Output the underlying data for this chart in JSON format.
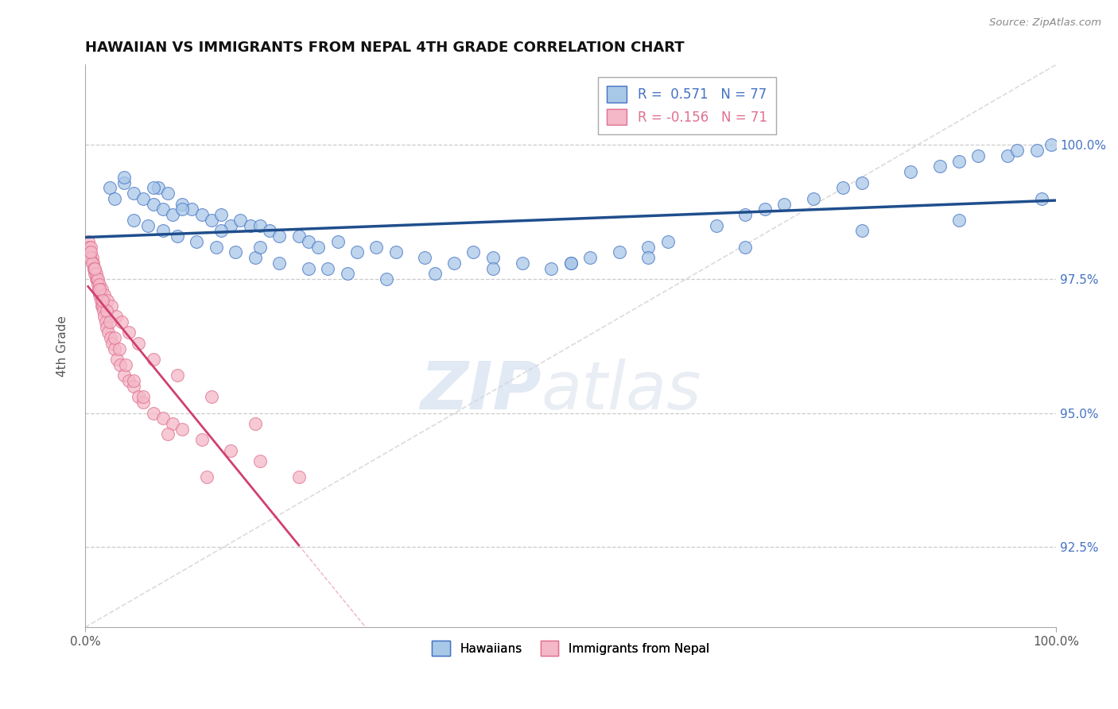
{
  "title": "HAWAIIAN VS IMMIGRANTS FROM NEPAL 4TH GRADE CORRELATION CHART",
  "source_text": "Source: ZipAtlas.com",
  "ylabel": "4th Grade",
  "xlim": [
    0.0,
    100.0
  ],
  "ylim": [
    91.0,
    101.5
  ],
  "yticks": [
    92.5,
    95.0,
    97.5,
    100.0
  ],
  "ytick_labels": [
    "92.5%",
    "95.0%",
    "97.5%",
    "100.0%"
  ],
  "legend_label1": "Hawaiians",
  "legend_label2": "Immigrants from Nepal",
  "blue_scatter_color": "#A8C8E8",
  "blue_scatter_edge": "#4472C4",
  "pink_scatter_color": "#F4B8C8",
  "pink_scatter_edge": "#E07090",
  "blue_line_color": "#1F4E8C",
  "pink_line_color": "#D04070",
  "watermark_zip": "ZIP",
  "watermark_atlas": "atlas",
  "legend_r1_color": "#4472C4",
  "legend_r2_color": "#E07090",
  "hawaiians_x": [
    2.5,
    3.0,
    4.0,
    5.0,
    6.0,
    7.0,
    7.5,
    8.0,
    8.5,
    9.0,
    10.0,
    11.0,
    12.0,
    13.0,
    14.0,
    15.0,
    16.0,
    17.0,
    18.0,
    19.0,
    20.0,
    22.0,
    23.0,
    24.0,
    26.0,
    28.0,
    30.0,
    32.0,
    35.0,
    38.0,
    40.0,
    42.0,
    45.0,
    48.0,
    50.0,
    52.0,
    55.0,
    58.0,
    60.0,
    65.0,
    68.0,
    70.0,
    72.0,
    75.0,
    78.0,
    80.0,
    85.0,
    88.0,
    90.0,
    92.0,
    95.0,
    96.0,
    98.0,
    99.5,
    5.0,
    6.5,
    8.0,
    9.5,
    11.5,
    13.5,
    15.5,
    17.5,
    20.0,
    23.0,
    27.0,
    31.0,
    36.0,
    42.0,
    50.0,
    58.0,
    68.0,
    80.0,
    90.0,
    98.5,
    4.0,
    7.0,
    10.0,
    14.0,
    18.0,
    25.0
  ],
  "hawaiians_y": [
    99.2,
    99.0,
    99.3,
    99.1,
    99.0,
    98.9,
    99.2,
    98.8,
    99.1,
    98.7,
    98.9,
    98.8,
    98.7,
    98.6,
    98.7,
    98.5,
    98.6,
    98.5,
    98.5,
    98.4,
    98.3,
    98.3,
    98.2,
    98.1,
    98.2,
    98.0,
    98.1,
    98.0,
    97.9,
    97.8,
    98.0,
    97.9,
    97.8,
    97.7,
    97.8,
    97.9,
    98.0,
    98.1,
    98.2,
    98.5,
    98.7,
    98.8,
    98.9,
    99.0,
    99.2,
    99.3,
    99.5,
    99.6,
    99.7,
    99.8,
    99.8,
    99.9,
    99.9,
    100.0,
    98.6,
    98.5,
    98.4,
    98.3,
    98.2,
    98.1,
    98.0,
    97.9,
    97.8,
    97.7,
    97.6,
    97.5,
    97.6,
    97.7,
    97.8,
    97.9,
    98.1,
    98.4,
    98.6,
    99.0,
    99.4,
    99.2,
    98.8,
    98.4,
    98.1,
    97.7
  ],
  "nepal_x": [
    0.3,
    0.4,
    0.5,
    0.6,
    0.7,
    0.8,
    0.9,
    1.0,
    1.1,
    1.2,
    1.3,
    1.4,
    1.5,
    1.6,
    1.7,
    1.8,
    1.9,
    2.0,
    2.1,
    2.2,
    2.4,
    2.6,
    2.8,
    3.0,
    3.3,
    3.6,
    4.0,
    4.5,
    5.0,
    5.5,
    6.0,
    7.0,
    8.0,
    9.0,
    10.0,
    12.0,
    15.0,
    18.0,
    22.0,
    0.5,
    0.7,
    0.9,
    1.1,
    1.3,
    1.5,
    1.7,
    2.0,
    2.3,
    2.7,
    3.2,
    3.8,
    4.5,
    5.5,
    7.0,
    9.5,
    13.0,
    17.5,
    0.6,
    1.0,
    1.5,
    2.2,
    3.0,
    4.2,
    6.0,
    8.5,
    12.5,
    1.8,
    2.5,
    3.5,
    5.0
  ],
  "nepal_y": [
    98.2,
    98.1,
    98.0,
    98.1,
    97.9,
    97.8,
    97.7,
    97.6,
    97.5,
    97.5,
    97.4,
    97.3,
    97.2,
    97.1,
    97.0,
    97.0,
    96.9,
    96.8,
    96.7,
    96.6,
    96.5,
    96.4,
    96.3,
    96.2,
    96.0,
    95.9,
    95.7,
    95.6,
    95.5,
    95.3,
    95.2,
    95.0,
    94.9,
    94.8,
    94.7,
    94.5,
    94.3,
    94.1,
    93.8,
    97.9,
    97.8,
    97.7,
    97.6,
    97.5,
    97.4,
    97.3,
    97.2,
    97.1,
    97.0,
    96.8,
    96.7,
    96.5,
    96.3,
    96.0,
    95.7,
    95.3,
    94.8,
    98.0,
    97.7,
    97.3,
    96.9,
    96.4,
    95.9,
    95.3,
    94.6,
    93.8,
    97.1,
    96.7,
    96.2,
    95.6
  ]
}
